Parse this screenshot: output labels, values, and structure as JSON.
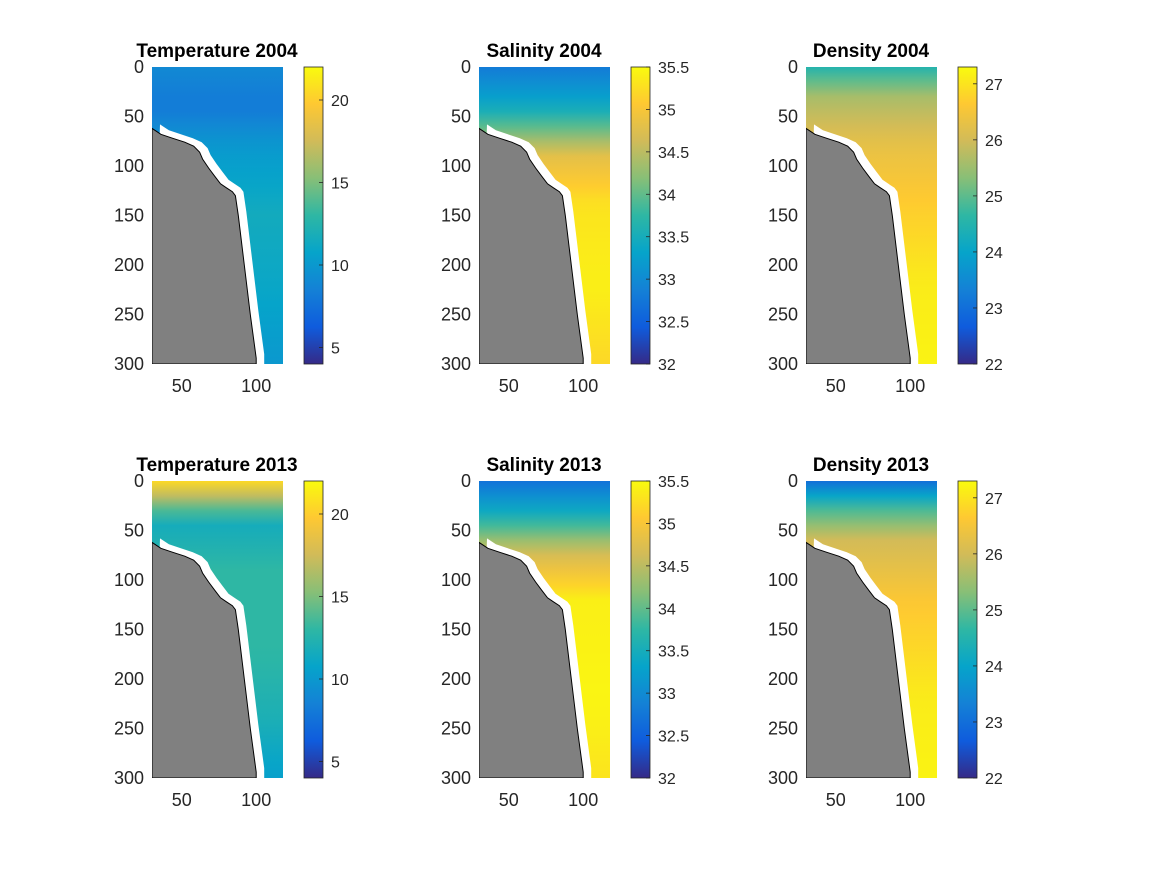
{
  "figure": {
    "colormap": "parula",
    "colormap_stops": [
      "#352a87",
      "#0f5cdd",
      "#1481d6",
      "#06a4ca",
      "#2eb7a4",
      "#87bf77",
      "#d1bb59",
      "#fec832",
      "#f9fb0e"
    ],
    "bathymetry_color": "#808080"
  },
  "chart_data": [
    {
      "type": "heatmap",
      "title": "Temperature 2004",
      "variable": "temperature",
      "year": "2004",
      "xlim": [
        30,
        118
      ],
      "ylim": [
        0,
        300
      ],
      "y_reversed": true,
      "xticks": [
        50,
        100
      ],
      "yticks": [
        0,
        50,
        100,
        150,
        200,
        250,
        300
      ],
      "clim": [
        4,
        22
      ],
      "cticks": [
        5,
        10,
        15,
        20
      ],
      "field": [
        {
          "d": 0,
          "v": 9
        },
        {
          "d": 40,
          "v": 8
        },
        {
          "d": 80,
          "v": 10
        },
        {
          "d": 150,
          "v": 11.5
        },
        {
          "d": 220,
          "v": 11
        },
        {
          "d": 300,
          "v": 10
        }
      ]
    },
    {
      "type": "heatmap",
      "title": "Salinity 2004",
      "variable": "salinity",
      "year": "2004",
      "xlim": [
        30,
        118
      ],
      "ylim": [
        0,
        300
      ],
      "y_reversed": true,
      "xticks": [
        50,
        100
      ],
      "yticks": [
        0,
        50,
        100,
        150,
        200,
        250,
        300
      ],
      "clim": [
        32,
        35.5
      ],
      "cticks": [
        32,
        32.5,
        33,
        33.5,
        34,
        34.5,
        35,
        35.5
      ],
      "field": [
        {
          "d": 0,
          "v": 32.8
        },
        {
          "d": 40,
          "v": 33.4
        },
        {
          "d": 90,
          "v": 34.8
        },
        {
          "d": 140,
          "v": 35.3
        },
        {
          "d": 220,
          "v": 35.4
        },
        {
          "d": 300,
          "v": 35.2
        }
      ]
    },
    {
      "type": "heatmap",
      "title": "Density 2004",
      "variable": "density",
      "year": "2004",
      "xlim": [
        30,
        118
      ],
      "ylim": [
        0,
        300
      ],
      "y_reversed": true,
      "xticks": [
        50,
        100
      ],
      "yticks": [
        0,
        50,
        100,
        150,
        200,
        250,
        300
      ],
      "clim": [
        22,
        27.3
      ],
      "cticks": [
        22,
        23,
        24,
        25,
        26,
        27
      ],
      "field": [
        {
          "d": 0,
          "v": 24.5
        },
        {
          "d": 30,
          "v": 25.6
        },
        {
          "d": 80,
          "v": 26.3
        },
        {
          "d": 140,
          "v": 26.7
        },
        {
          "d": 220,
          "v": 27.1
        },
        {
          "d": 300,
          "v": 27.2
        }
      ]
    },
    {
      "type": "heatmap",
      "title": "Temperature 2013",
      "variable": "temperature",
      "year": "2013",
      "xlim": [
        30,
        118
      ],
      "ylim": [
        0,
        300
      ],
      "y_reversed": true,
      "xticks": [
        50,
        100
      ],
      "yticks": [
        0,
        50,
        100,
        150,
        200,
        250,
        300
      ],
      "clim": [
        4,
        22
      ],
      "cticks": [
        5,
        10,
        15,
        20
      ],
      "field": [
        {
          "d": 0,
          "v": 20.5
        },
        {
          "d": 15,
          "v": 17
        },
        {
          "d": 40,
          "v": 11.5
        },
        {
          "d": 90,
          "v": 13
        },
        {
          "d": 170,
          "v": 13
        },
        {
          "d": 240,
          "v": 12
        },
        {
          "d": 300,
          "v": 10.5
        }
      ]
    },
    {
      "type": "heatmap",
      "title": "Salinity 2013",
      "variable": "salinity",
      "year": "2013",
      "xlim": [
        30,
        118
      ],
      "ylim": [
        0,
        300
      ],
      "y_reversed": true,
      "xticks": [
        50,
        100
      ],
      "yticks": [
        0,
        50,
        100,
        150,
        200,
        250,
        300
      ],
      "clim": [
        32,
        35.5
      ],
      "cticks": [
        32,
        32.5,
        33,
        33.5,
        34,
        34.5,
        35,
        35.5
      ],
      "field": [
        {
          "d": 0,
          "v": 32.7
        },
        {
          "d": 30,
          "v": 33.4
        },
        {
          "d": 70,
          "v": 34.6
        },
        {
          "d": 120,
          "v": 35.4
        },
        {
          "d": 220,
          "v": 35.45
        },
        {
          "d": 300,
          "v": 35.3
        }
      ]
    },
    {
      "type": "heatmap",
      "title": "Density 2013",
      "variable": "density",
      "year": "2013",
      "xlim": [
        30,
        118
      ],
      "ylim": [
        0,
        300
      ],
      "y_reversed": true,
      "xticks": [
        50,
        100
      ],
      "yticks": [
        0,
        50,
        100,
        150,
        200,
        250,
        300
      ],
      "clim": [
        22,
        27.3
      ],
      "cticks": [
        22,
        23,
        24,
        25,
        26,
        27
      ],
      "field": [
        {
          "d": 0,
          "v": 23.0
        },
        {
          "d": 25,
          "v": 24.7
        },
        {
          "d": 60,
          "v": 26.0
        },
        {
          "d": 120,
          "v": 26.6
        },
        {
          "d": 220,
          "v": 27.1
        },
        {
          "d": 300,
          "v": 27.2
        }
      ]
    }
  ],
  "bathymetry": {
    "x": [
      30,
      36,
      44,
      52,
      58,
      62,
      64,
      68,
      72,
      76,
      80,
      84,
      86,
      88,
      92,
      96,
      100,
      100
    ],
    "depth": [
      62,
      68,
      72,
      76,
      80,
      86,
      93,
      102,
      110,
      118,
      122,
      126,
      130,
      150,
      200,
      250,
      294,
      300
    ]
  }
}
